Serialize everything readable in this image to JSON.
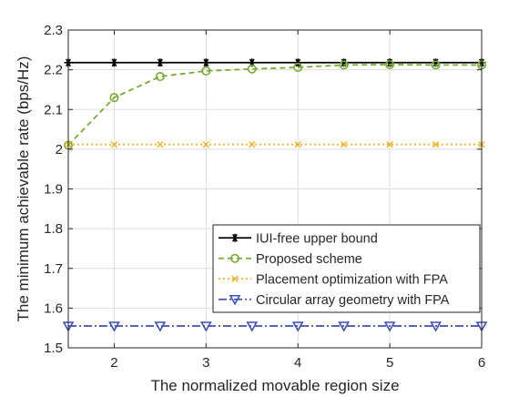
{
  "chart_data": {
    "type": "line",
    "title": "",
    "xlabel": "The normalized movable region size",
    "ylabel": "The minimum achievable rate (bps/Hz)",
    "xlim": [
      1.5,
      6
    ],
    "ylim": [
      1.5,
      2.3
    ],
    "xticks": [
      2,
      3,
      4,
      5,
      6
    ],
    "xtick_labels": [
      "2",
      "3",
      "4",
      "5",
      "6"
    ],
    "yticks": [
      1.5,
      1.6,
      1.7,
      1.8,
      1.9,
      2.0,
      2.1,
      2.2,
      2.3
    ],
    "ytick_labels": [
      "1.5",
      "1.6",
      "1.7",
      "1.8",
      "1.9",
      "2",
      "2.1",
      "2.2",
      "2.3"
    ],
    "grid": true,
    "legend_position": "lower-right",
    "x": [
      1.5,
      2,
      2.5,
      3,
      3.5,
      4,
      4.5,
      5,
      5.5,
      6
    ],
    "series": [
      {
        "name": "IUI-free upper bound",
        "color": "#000000",
        "line": "solid",
        "marker": "asterisk",
        "values": [
          2.218,
          2.218,
          2.218,
          2.218,
          2.218,
          2.218,
          2.218,
          2.218,
          2.218,
          2.218
        ]
      },
      {
        "name": "Proposed scheme",
        "color": "#77AC30",
        "line": "dashed",
        "marker": "circle",
        "values": [
          2.01,
          2.13,
          2.183,
          2.197,
          2.202,
          2.206,
          2.212,
          2.213,
          2.212,
          2.212
        ]
      },
      {
        "name": "Placement optimization with FPA",
        "color": "#EDB120",
        "line": "dotted",
        "marker": "x",
        "values": [
          2.012,
          2.012,
          2.012,
          2.012,
          2.012,
          2.012,
          2.012,
          2.012,
          2.012,
          2.012
        ]
      },
      {
        "name": "Circular array geometry with FPA",
        "color": "#3F51B5",
        "line": "dashdot",
        "marker": "triangle-down",
        "values": [
          1.555,
          1.555,
          1.555,
          1.555,
          1.555,
          1.555,
          1.555,
          1.555,
          1.555,
          1.555
        ]
      }
    ]
  }
}
